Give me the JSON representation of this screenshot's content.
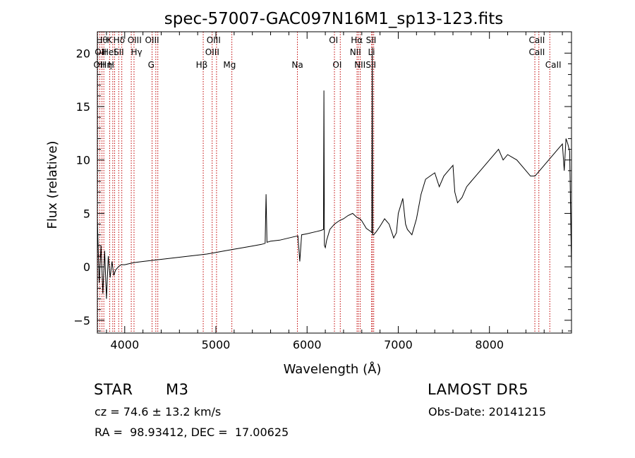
{
  "chart_data": {
    "type": "line",
    "title": "spec-57007-GAC097N16M1_sp13-123.fits",
    "xlabel": "Wavelength (Å)",
    "ylabel": "Flux (relative)",
    "xlim": [
      3700,
      8900
    ],
    "ylim": [
      -6.2,
      22.0
    ],
    "xticks": [
      4000,
      5000,
      6000,
      7000,
      8000
    ],
    "xtick_labels": [
      "4000",
      "5000",
      "6000",
      "7000",
      "8000"
    ],
    "yticks": [
      -5,
      0,
      5,
      10,
      15,
      20
    ],
    "ytick_labels": [
      "−5",
      "0",
      "5",
      "10",
      "15",
      "20"
    ],
    "grid": false,
    "line_color": "#000000",
    "marker_color": "#c00000",
    "spectrum": {
      "x": [
        3700,
        3720,
        3740,
        3760,
        3780,
        3800,
        3820,
        3840,
        3860,
        3880,
        3900,
        3930,
        3960,
        4000,
        4100,
        4200,
        4300,
        4400,
        4500,
        4600,
        4700,
        4800,
        4900,
        5000,
        5100,
        5200,
        5300,
        5400,
        5500,
        5540,
        5550,
        5560,
        5600,
        5700,
        5800,
        5900,
        5920,
        5940,
        6000,
        6100,
        6150,
        6180,
        6185,
        6190,
        6200,
        6215,
        6250,
        6300,
        6350,
        6400,
        6450,
        6500,
        6550,
        6580,
        6600,
        6650,
        6700,
        6710,
        6715,
        6720,
        6730,
        6760,
        6800,
        6850,
        6900,
        6950,
        6980,
        7000,
        7050,
        7080,
        7100,
        7150,
        7200,
        7250,
        7300,
        7350,
        7400,
        7450,
        7500,
        7550,
        7600,
        7620,
        7650,
        7700,
        7750,
        7800,
        7900,
        8000,
        8100,
        8150,
        8200,
        8300,
        8400,
        8450,
        8500,
        8550,
        8600,
        8650,
        8700,
        8750,
        8800,
        8820,
        8840,
        8860,
        8880,
        8900
      ],
      "y": [
        4.5,
        -1.5,
        2.0,
        -2.5,
        1.5,
        -3.0,
        1.0,
        -1.0,
        0.5,
        -0.8,
        -0.3,
        0.0,
        0.2,
        0.2,
        0.4,
        0.5,
        0.6,
        0.7,
        0.8,
        0.9,
        1.0,
        1.1,
        1.2,
        1.35,
        1.5,
        1.65,
        1.8,
        1.95,
        2.1,
        2.2,
        6.8,
        2.3,
        2.4,
        2.5,
        2.7,
        2.9,
        0.5,
        3.0,
        3.1,
        3.3,
        3.4,
        3.5,
        16.5,
        2.0,
        1.8,
        2.5,
        3.5,
        4.0,
        4.3,
        4.5,
        4.8,
        5.0,
        4.6,
        4.5,
        4.3,
        3.6,
        3.3,
        3.2,
        20.5,
        3.0,
        3.0,
        3.3,
        3.8,
        4.5,
        4.0,
        2.7,
        3.2,
        5.0,
        6.4,
        4.0,
        3.5,
        3.0,
        4.5,
        6.8,
        8.2,
        8.5,
        8.8,
        7.5,
        8.5,
        9.0,
        9.5,
        7.0,
        6.0,
        6.5,
        7.5,
        8.0,
        9.0,
        10.0,
        11.0,
        10.0,
        10.5,
        10.0,
        9.0,
        8.5,
        8.5,
        9.0,
        9.5,
        10.0,
        10.5,
        11.0,
        11.5,
        9.0,
        12.0,
        11.5,
        10.8,
        0.0
      ]
    },
    "line_markers": [
      {
        "x": 3704,
        "label": "OII"
      },
      {
        "x": 3727,
        "label": "OII"
      },
      {
        "x": 3750,
        "label": "Hθ"
      },
      {
        "x": 3771,
        "label": "Hη"
      },
      {
        "x": 3835,
        "label": "Hη"
      },
      {
        "x": 3869,
        "label": "HeI"
      },
      {
        "x": 3889,
        "label": "HeI"
      },
      {
        "x": 3934,
        "label": "K"
      },
      {
        "x": 3968,
        "label": "H"
      },
      {
        "x": 4072,
        "label": "SII"
      },
      {
        "x": 4102,
        "label": "Hδ"
      },
      {
        "x": 4300,
        "label": "G"
      },
      {
        "x": 4341,
        "label": "Hγ"
      },
      {
        "x": 4363,
        "label": "OIII"
      },
      {
        "x": 4861,
        "label": "Hβ"
      },
      {
        "x": 4959,
        "label": "OIII"
      },
      {
        "x": 5007,
        "label": "OIII"
      },
      {
        "x": 5175,
        "label": "Mg"
      },
      {
        "x": 5894,
        "label": "Na"
      },
      {
        "x": 6300,
        "label": "OI"
      },
      {
        "x": 6364,
        "label": "OI"
      },
      {
        "x": 6548,
        "label": "NII"
      },
      {
        "x": 6563,
        "label": "Hα"
      },
      {
        "x": 6583,
        "label": "NII"
      },
      {
        "x": 6708,
        "label": "Li"
      },
      {
        "x": 6716,
        "label": "SII"
      },
      {
        "x": 6731,
        "label": "SII"
      },
      {
        "x": 8498,
        "label": "CaII"
      },
      {
        "x": 8542,
        "label": "CaII"
      },
      {
        "x": 8662,
        "label": "CaII"
      }
    ],
    "marker_labels": [
      {
        "x": 3751,
        "row": 0,
        "text": "Hθ"
      },
      {
        "x": 3833,
        "row": 0,
        "text": "K"
      },
      {
        "x": 3938,
        "row": 0,
        "text": "Hδ"
      },
      {
        "x": 4108,
        "row": 0,
        "text": "OIII"
      },
      {
        "x": 4300,
        "row": 0,
        "text": "OIII"
      },
      {
        "x": 4975,
        "row": 0,
        "text": "OIII"
      },
      {
        "x": 6290,
        "row": 0,
        "text": "OI"
      },
      {
        "x": 6545,
        "row": 0,
        "text": "Hα"
      },
      {
        "x": 6702,
        "row": 0,
        "text": "SII"
      },
      {
        "x": 8520,
        "row": 0,
        "text": "CaII"
      },
      {
        "x": 3735,
        "row": 1,
        "text": "OII"
      },
      {
        "x": 3830,
        "row": 1,
        "text": "HeI"
      },
      {
        "x": 3935,
        "row": 1,
        "text": "SII"
      },
      {
        "x": 4130,
        "row": 1,
        "text": "Hγ"
      },
      {
        "x": 4960,
        "row": 1,
        "text": "OIII"
      },
      {
        "x": 6530,
        "row": 1,
        "text": "NII"
      },
      {
        "x": 6706,
        "row": 1,
        "text": "Li"
      },
      {
        "x": 8520,
        "row": 1,
        "text": "CaII"
      },
      {
        "x": 3720,
        "row": 2,
        "text": "OII"
      },
      {
        "x": 3797,
        "row": 2,
        "text": "Hη"
      },
      {
        "x": 3850,
        "row": 2,
        "text": "H"
      },
      {
        "x": 4290,
        "row": 2,
        "text": "G"
      },
      {
        "x": 4845,
        "row": 2,
        "text": "Hβ"
      },
      {
        "x": 5150,
        "row": 2,
        "text": "Mg"
      },
      {
        "x": 5894,
        "row": 2,
        "text": "Na"
      },
      {
        "x": 6330,
        "row": 2,
        "text": "OI"
      },
      {
        "x": 6580,
        "row": 2,
        "text": "NII"
      },
      {
        "x": 6700,
        "row": 2,
        "text": "SII"
      },
      {
        "x": 8700,
        "row": 2,
        "text": "CaII"
      }
    ]
  },
  "info": {
    "object_class": "STAR",
    "subclass": "M3",
    "survey": "LAMOST DR5",
    "velocity": "cz = 74.6 ± 13.2 km/s",
    "obs_date": "Obs-Date: 20141215",
    "coords": "RA =  98.93412, DEC =  17.00625"
  }
}
